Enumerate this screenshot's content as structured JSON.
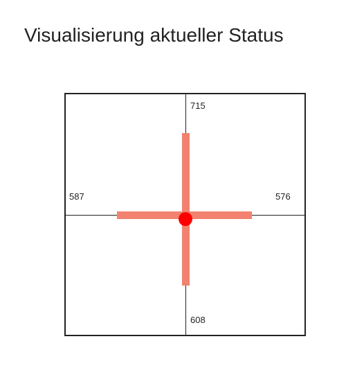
{
  "page": {
    "title": "Visualisierung aktueller Status"
  },
  "status": {
    "top_value": "715",
    "bottom_value": "608",
    "left_value": "587",
    "right_value": "576"
  },
  "colors": {
    "bar": "#f2826f",
    "center_dot": "#ff0000",
    "frame": "#222222"
  }
}
